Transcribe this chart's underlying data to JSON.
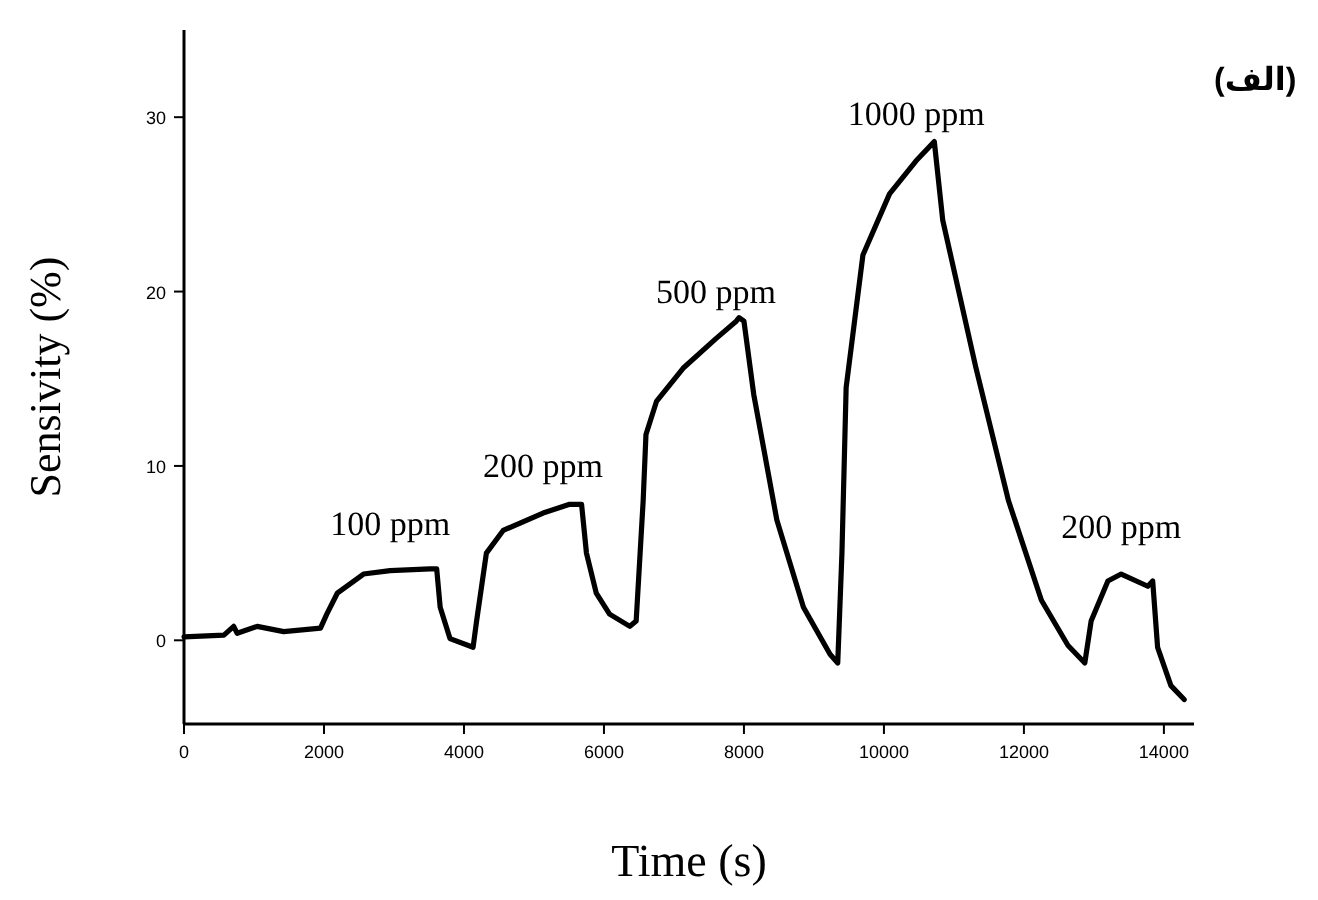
{
  "chart_data": {
    "type": "line",
    "xlabel": "Time (s)",
    "ylabel": "Sensivity (%)",
    "xlim": [
      0,
      14430
    ],
    "ylim": [
      -4.8,
      35
    ],
    "xticks": [
      0,
      2000,
      4000,
      6000,
      8000,
      10000,
      12000,
      14000
    ],
    "yticks": [
      0,
      10,
      20,
      30
    ],
    "grid": false,
    "marker": "none",
    "line_style": "solid",
    "series": [
      {
        "color": "#000000",
        "x": [
          0,
          570,
          710,
          760,
          1045,
          1425,
          1950,
          2040,
          2190,
          2565,
          2945,
          3515,
          3610,
          3660,
          3800,
          4130,
          4180,
          4320,
          4560,
          5130,
          5510,
          5680,
          5750,
          5890,
          6080,
          6370,
          6460,
          6560,
          6600,
          6750,
          7130,
          7600,
          7890,
          7930,
          8000,
          8140,
          8470,
          8850,
          9230,
          9340,
          9400,
          9460,
          9700,
          10080,
          10460,
          10720,
          10840,
          11310,
          11780,
          12250,
          12630,
          12870,
          12960,
          13200,
          13390,
          13770,
          13840,
          13910,
          14100,
          14290
        ],
        "values": [
          0.2,
          0.3,
          0.8,
          0.4,
          0.8,
          0.5,
          0.7,
          1.5,
          2.7,
          3.8,
          4.0,
          4.1,
          4.1,
          1.9,
          0.1,
          -0.4,
          1.1,
          5.0,
          6.3,
          7.3,
          7.8,
          7.8,
          5.0,
          2.7,
          1.5,
          0.8,
          1.1,
          8.0,
          11.8,
          13.7,
          15.6,
          17.3,
          18.3,
          18.5,
          18.3,
          14.1,
          6.9,
          1.9,
          -0.8,
          -1.3,
          5.0,
          14.5,
          22.1,
          25.6,
          27.5,
          28.6,
          24.1,
          15.7,
          8.0,
          2.3,
          -0.3,
          -1.3,
          1.1,
          3.4,
          3.8,
          3.1,
          3.4,
          -0.4,
          -2.6,
          -3.4
        ]
      }
    ],
    "annotations": [
      {
        "text": "100 ppm",
        "x": 2945,
        "y": 4.0
      },
      {
        "text": "200 ppm",
        "x": 5130,
        "y": 7.3
      },
      {
        "text": "500 ppm",
        "x": 7600,
        "y": 17.3
      },
      {
        "text": "1000 ppm",
        "x": 10460,
        "y": 27.5
      },
      {
        "text": "200 ppm",
        "x": 13390,
        "y": 3.8
      },
      "(الف)"
    ]
  }
}
